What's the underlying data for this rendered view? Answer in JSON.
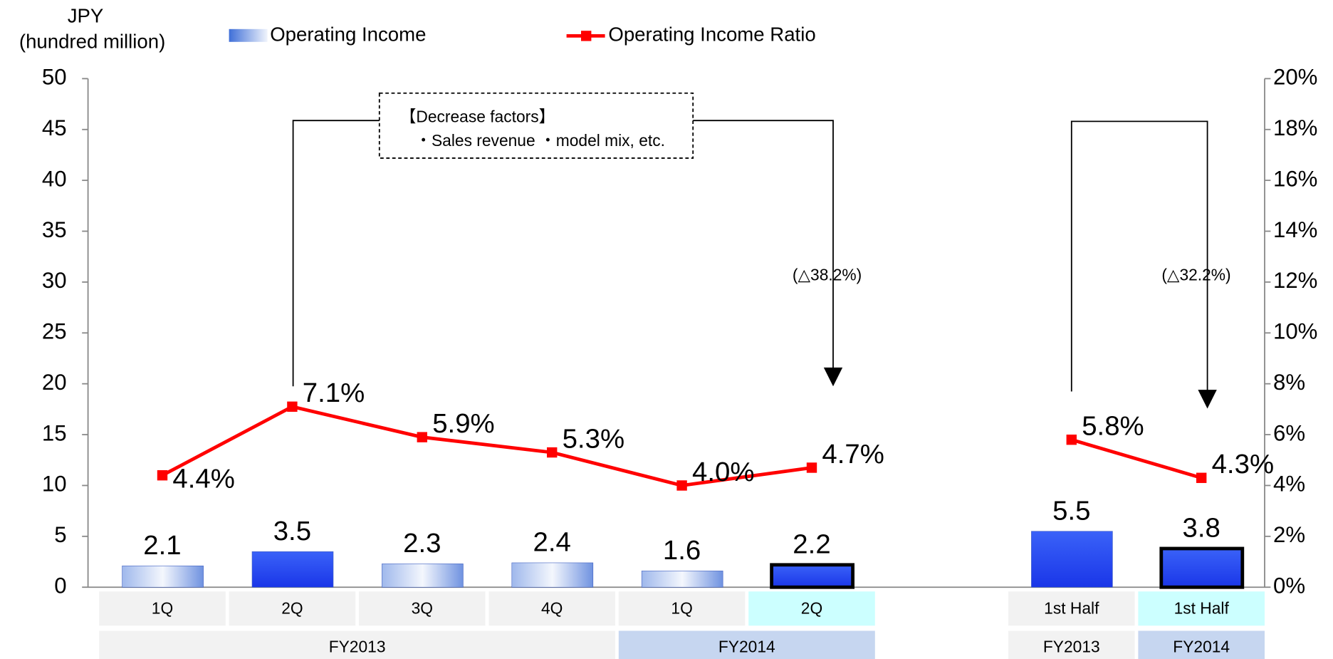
{
  "chart_data": {
    "type": "bar",
    "axis_label": "JPY",
    "axis_unit": "(hundred million)",
    "categories": [
      "1Q",
      "2Q",
      "3Q",
      "4Q",
      "1Q",
      "2Q",
      null,
      "1st Half",
      "1st Half"
    ],
    "groups": [
      {
        "name": "FY2013",
        "categories": [
          0,
          1,
          2,
          3
        ]
      },
      {
        "name": "FY2014",
        "categories": [
          4,
          5
        ]
      },
      {
        "name": "FY2013",
        "categories": [
          7
        ]
      },
      {
        "name": "FY2014",
        "categories": [
          8
        ]
      }
    ],
    "series": [
      {
        "name": "Operating Income",
        "type": "bar",
        "color": "#1f3ff5",
        "values": [
          2.1,
          3.5,
          2.3,
          2.4,
          1.6,
          2.2,
          null,
          5.5,
          3.8
        ]
      },
      {
        "name": "Operating Income Ratio",
        "type": "line",
        "axis": "y2",
        "color": "#ff0000",
        "values": [
          4.4,
          7.1,
          5.9,
          5.3,
          4.0,
          4.7,
          null,
          5.8,
          4.3
        ],
        "value_labels": [
          "4.4%",
          "7.1%",
          "5.9%",
          "5.3%",
          "4.0%",
          "4.7%",
          null,
          "5.8%",
          "4.3%"
        ]
      }
    ],
    "ylim": [
      0,
      50
    ],
    "yticks": [
      0,
      5,
      10,
      15,
      20,
      25,
      30,
      35,
      40,
      45,
      50
    ],
    "y2lim": [
      0,
      20
    ],
    "y2ticks": [
      {
        "value": 0,
        "label": "0%"
      },
      {
        "value": 2,
        "label": "2%"
      },
      {
        "value": 4,
        "label": "4%"
      },
      {
        "value": 6,
        "label": "6%"
      },
      {
        "value": 8,
        "label": "8%"
      },
      {
        "value": 10,
        "label": "10%"
      },
      {
        "value": 12,
        "label": "12%"
      },
      {
        "value": 14,
        "label": "14%"
      },
      {
        "value": 16,
        "label": "16%"
      },
      {
        "value": 18,
        "label": "18%"
      },
      {
        "value": 20,
        "label": "20%"
      }
    ],
    "annotations": [
      "【Decrease factors】",
      "・Sales revenue ・model mix, etc.",
      "(△38.2%)",
      "(△32.2%)"
    ]
  }
}
